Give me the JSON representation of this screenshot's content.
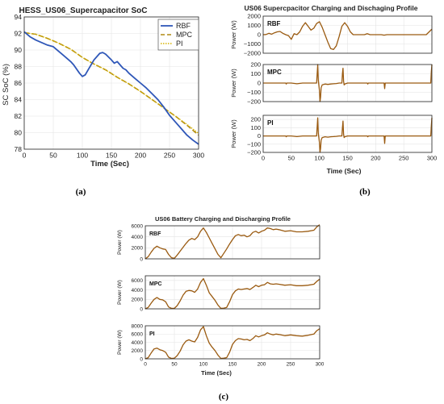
{
  "colors": {
    "rbf": "#2f57b8",
    "mpc": "#b08a12",
    "pi": "#d7b400",
    "brown": "#9a5a10",
    "grid": "#e4e4e4",
    "axis": "#222222"
  },
  "sublabels": {
    "a": "(a)",
    "b": "(b)",
    "c": "(c)"
  },
  "chart_data": [
    {
      "id": "a",
      "type": "line",
      "title": "HESS_US06_Supercapacitor SoC",
      "xlabel": "Time (Sec)",
      "ylabel": "SC SoC (%)",
      "xlim": [
        0,
        300
      ],
      "ylim": [
        78,
        94
      ],
      "xticks": [
        0,
        50,
        100,
        150,
        200,
        250,
        300
      ],
      "yticks": [
        78,
        80,
        82,
        84,
        86,
        88,
        90,
        92,
        94
      ],
      "grid": true,
      "legend": "top-right",
      "series": [
        {
          "name": "RBF",
          "x": [
            0,
            10,
            20,
            30,
            40,
            50,
            60,
            70,
            80,
            85,
            95,
            100,
            105,
            110,
            120,
            130,
            135,
            140,
            150,
            155,
            160,
            170,
            175,
            180,
            190,
            200,
            210,
            220,
            230,
            240,
            250,
            260,
            270,
            280,
            290,
            300
          ],
          "y": [
            92.2,
            91.6,
            91.2,
            90.9,
            90.6,
            90.4,
            89.8,
            89.2,
            88.6,
            88.2,
            87.2,
            86.8,
            87.0,
            87.6,
            88.8,
            89.6,
            89.7,
            89.5,
            88.8,
            88.4,
            88.6,
            87.8,
            87.6,
            87.2,
            86.6,
            86.0,
            85.4,
            84.7,
            84.0,
            83.1,
            82.1,
            81.3,
            80.5,
            79.7,
            79.1,
            78.6
          ]
        },
        {
          "name": "MPC",
          "x": [
            0,
            20,
            40,
            60,
            80,
            100,
            120,
            140,
            160,
            180,
            200,
            220,
            240,
            260,
            280,
            300
          ],
          "y": [
            92.1,
            91.9,
            91.4,
            90.8,
            90.1,
            89.1,
            88.3,
            87.6,
            86.7,
            85.9,
            85.0,
            84.0,
            83.0,
            82.0,
            80.9,
            79.7
          ]
        },
        {
          "name": "PI",
          "x": [
            0,
            20,
            40,
            60,
            80,
            100,
            120,
            140,
            160,
            180,
            200,
            220,
            240,
            260,
            280,
            300
          ],
          "y": [
            92.1,
            91.9,
            91.4,
            90.8,
            90.1,
            89.1,
            88.3,
            87.6,
            86.7,
            85.9,
            85.0,
            84.0,
            83.0,
            82.0,
            81.0,
            79.9
          ]
        }
      ]
    },
    {
      "id": "b",
      "type": "line",
      "title": "US06 Supercpacitor Charging and Dischaging Profile",
      "xlabel": "Time (Sec)",
      "xlim": [
        0,
        300
      ],
      "xticks": [
        0,
        50,
        100,
        150,
        200,
        250,
        300
      ],
      "grid": true,
      "panels": [
        {
          "label": "RBF",
          "ylabel": "Power (W)",
          "ylim": [
            -2000,
            2000
          ],
          "yticks": [
            -2000,
            -1000,
            0,
            1000,
            2000
          ],
          "x": [
            0,
            5,
            10,
            15,
            20,
            25,
            30,
            35,
            40,
            45,
            50,
            55,
            60,
            65,
            70,
            75,
            80,
            85,
            90,
            95,
            100,
            105,
            110,
            115,
            120,
            125,
            130,
            135,
            140,
            145,
            150,
            155,
            160,
            170,
            180,
            185,
            190,
            200,
            210,
            215,
            220,
            230,
            240,
            250,
            260,
            270,
            280,
            290,
            300
          ],
          "y": [
            0,
            20,
            150,
            50,
            200,
            300,
            350,
            150,
            0,
            -100,
            -500,
            100,
            0,
            300,
            900,
            1300,
            900,
            500,
            700,
            1200,
            1400,
            800,
            0,
            -800,
            -1500,
            -1600,
            -1200,
            -200,
            900,
            1300,
            900,
            300,
            0,
            0,
            0,
            100,
            0,
            0,
            0,
            -50,
            0,
            0,
            0,
            0,
            0,
            0,
            0,
            0,
            600
          ]
        },
        {
          "label": "MPC",
          "ylabel": "Power (W)",
          "ylim": [
            -200,
            200
          ],
          "yticks": [
            -200,
            -100,
            0,
            100,
            200
          ],
          "x": [
            0,
            30,
            40,
            41,
            42,
            50,
            60,
            70,
            80,
            90,
            95,
            96,
            97,
            98,
            100,
            101,
            102,
            103,
            105,
            110,
            115,
            120,
            125,
            130,
            135,
            140,
            141,
            142,
            143,
            144,
            145,
            150,
            180,
            185,
            186,
            187,
            190,
            210,
            215,
            216,
            217,
            220,
            260,
            280,
            295,
            298,
            299,
            300
          ],
          "y": [
            0,
            0,
            0,
            -10,
            0,
            0,
            -8,
            0,
            0,
            0,
            0,
            100,
            200,
            30,
            -80,
            -200,
            -150,
            -50,
            -20,
            -10,
            -15,
            -10,
            -8,
            -5,
            0,
            0,
            100,
            160,
            20,
            -20,
            -10,
            0,
            0,
            0,
            -10,
            0,
            0,
            0,
            0,
            -60,
            0,
            0,
            0,
            0,
            0,
            0,
            120,
            200
          ]
        },
        {
          "label": "PI",
          "ylabel": "Power (W)",
          "ylim": [
            -200,
            250
          ],
          "yticks": [
            -200,
            -100,
            0,
            100,
            200
          ],
          "x": [
            0,
            30,
            40,
            41,
            42,
            50,
            60,
            70,
            80,
            90,
            95,
            96,
            97,
            98,
            100,
            101,
            102,
            103,
            105,
            110,
            115,
            120,
            125,
            130,
            135,
            140,
            141,
            142,
            143,
            144,
            145,
            150,
            180,
            185,
            186,
            187,
            190,
            210,
            215,
            216,
            217,
            220,
            260,
            280,
            295,
            298,
            299,
            300
          ],
          "y": [
            0,
            0,
            0,
            -10,
            0,
            0,
            -8,
            0,
            0,
            0,
            0,
            110,
            220,
            30,
            -80,
            -200,
            -150,
            -50,
            -20,
            -10,
            -15,
            -10,
            -8,
            -5,
            0,
            0,
            100,
            180,
            20,
            -20,
            -10,
            0,
            0,
            0,
            -10,
            0,
            0,
            0,
            0,
            -90,
            0,
            0,
            0,
            0,
            0,
            0,
            120,
            220
          ]
        }
      ]
    },
    {
      "id": "c",
      "type": "line",
      "title": "US06 Battery Charging and Discharging Profile",
      "xlabel": "Time (Sec)",
      "xlim": [
        0,
        300
      ],
      "xticks": [
        0,
        50,
        100,
        150,
        200,
        250,
        300
      ],
      "grid": true,
      "panels": [
        {
          "label": "RBF",
          "ylabel": "Power (W)",
          "ylim": [
            0,
            6000
          ],
          "yticks": [
            0,
            2000,
            4000,
            6000
          ],
          "x": [
            0,
            5,
            10,
            15,
            20,
            25,
            30,
            35,
            40,
            45,
            50,
            55,
            60,
            65,
            70,
            75,
            80,
            85,
            90,
            95,
            100,
            105,
            110,
            115,
            120,
            125,
            130,
            135,
            140,
            145,
            150,
            155,
            160,
            165,
            170,
            175,
            180,
            185,
            190,
            195,
            200,
            205,
            210,
            215,
            220,
            225,
            230,
            240,
            250,
            260,
            270,
            280,
            290,
            295,
            300
          ],
          "y": [
            0,
            400,
            1200,
            1900,
            2300,
            2000,
            1800,
            1700,
            800,
            200,
            100,
            700,
            1400,
            2100,
            2800,
            3400,
            3700,
            3500,
            4000,
            5000,
            5600,
            4800,
            3800,
            2800,
            1800,
            800,
            200,
            1000,
            1800,
            2700,
            3500,
            4200,
            4400,
            4200,
            4300,
            4000,
            4200,
            4800,
            5000,
            4700,
            5000,
            5200,
            5600,
            5500,
            5300,
            5400,
            5300,
            5000,
            5100,
            4900,
            4900,
            5000,
            5200,
            5800,
            6200
          ]
        },
        {
          "label": "MPC",
          "ylabel": "Power (W)",
          "ylim": [
            0,
            7000
          ],
          "yticks": [
            0,
            2000,
            4000,
            6000
          ],
          "x": [
            0,
            5,
            10,
            15,
            20,
            25,
            30,
            35,
            40,
            45,
            50,
            55,
            60,
            65,
            70,
            75,
            80,
            85,
            90,
            95,
            100,
            105,
            110,
            115,
            120,
            125,
            130,
            135,
            140,
            145,
            150,
            155,
            160,
            165,
            170,
            175,
            180,
            185,
            190,
            195,
            200,
            205,
            210,
            215,
            220,
            225,
            230,
            240,
            250,
            260,
            270,
            280,
            290,
            295,
            300
          ],
          "y": [
            0,
            300,
            1200,
            2000,
            2400,
            2000,
            1900,
            1500,
            400,
            100,
            100,
            700,
            1700,
            2900,
            3700,
            3900,
            3800,
            3500,
            4200,
            5600,
            6400,
            5000,
            3400,
            2600,
            1800,
            800,
            100,
            150,
            300,
            1500,
            3000,
            3800,
            4200,
            4100,
            4200,
            4300,
            4100,
            4500,
            5000,
            4700,
            5000,
            5100,
            5600,
            5300,
            5200,
            5300,
            5200,
            5000,
            5100,
            4900,
            4900,
            5000,
            5200,
            5800,
            6300
          ]
        },
        {
          "label": "PI",
          "ylabel": "Power (W)",
          "ylim": [
            0,
            8000
          ],
          "yticks": [
            0,
            2000,
            4000,
            6000,
            8000
          ],
          "x": [
            0,
            5,
            10,
            15,
            20,
            25,
            30,
            35,
            40,
            45,
            50,
            55,
            60,
            65,
            70,
            75,
            80,
            85,
            90,
            95,
            100,
            105,
            110,
            115,
            120,
            125,
            130,
            135,
            140,
            145,
            150,
            155,
            160,
            165,
            170,
            175,
            180,
            185,
            190,
            195,
            200,
            205,
            210,
            215,
            220,
            225,
            230,
            240,
            250,
            260,
            270,
            280,
            290,
            295,
            300
          ],
          "y": [
            0,
            300,
            1400,
            2400,
            2600,
            2200,
            2000,
            1600,
            400,
            100,
            150,
            800,
            1900,
            3400,
            4300,
            4600,
            4300,
            4100,
            5200,
            7000,
            7800,
            5600,
            3800,
            2800,
            2000,
            900,
            100,
            150,
            300,
            1600,
            3500,
            4400,
            4900,
            4800,
            4600,
            4700,
            4400,
            4900,
            5600,
            5300,
            5600,
            5800,
            6300,
            6000,
            5800,
            6000,
            5900,
            5600,
            5800,
            5600,
            5500,
            5700,
            6000,
            6800,
            7300
          ]
        }
      ]
    }
  ]
}
